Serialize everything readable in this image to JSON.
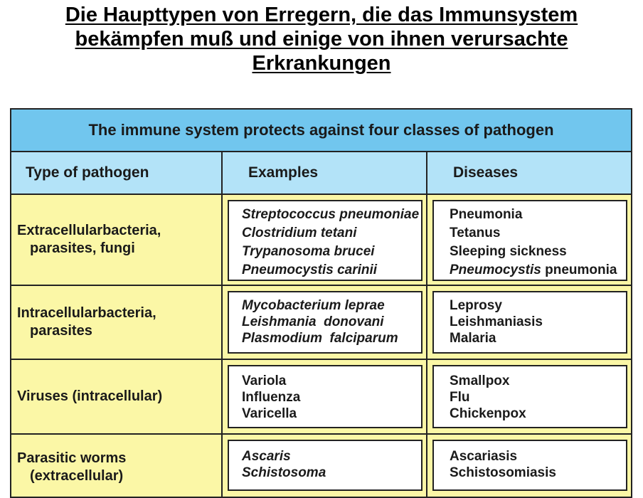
{
  "page_title": {
    "line1": "Die Haupttypen von Erregern, die das Immunsystem",
    "line2": "bekämpfen muß und einige von ihnen verursachte",
    "line3": "Erkrankungen"
  },
  "table": {
    "header": "The immune system protects against four classes of pathogen",
    "columns": {
      "type": "Type of pathogen",
      "examples": "Examples",
      "diseases": "Diseases"
    },
    "rows": [
      {
        "type_line1": "Extracellularbacteria,",
        "type_line2": "parasites, fungi",
        "examples": [
          "Streptococcus pneumoniae",
          "Clostridium tetani",
          "Trypanosoma brucei",
          "Pneumocystis carinii"
        ],
        "diseases": [
          "Pneumonia",
          "Tetanus",
          "Sleeping sickness"
        ],
        "disease_special_italic": "Pneumocystis",
        "disease_special_rest": " pneumonia"
      },
      {
        "type_line1": "Intracellularbacteria,",
        "type_line2": "parasites",
        "examples": [
          "Mycobacterium leprae",
          "Leishmania  donovani",
          "Plasmodium  falciparum"
        ],
        "diseases": [
          "Leprosy",
          "Leishmaniasis",
          "Malaria"
        ]
      },
      {
        "type_line1": "Viruses (intracellular)",
        "examples": [
          "Variola",
          "Influenza",
          "Varicella"
        ],
        "diseases": [
          "Smallpox",
          "Flu",
          "Chickenpox"
        ]
      },
      {
        "type_line1": "Parasitic worms",
        "type_line2": "(extracellular)",
        "examples": [
          "Ascaris",
          "Schistosoma"
        ],
        "diseases": [
          "Ascariasis",
          "Schistosomiasis"
        ]
      }
    ]
  },
  "colors": {
    "header_blue": "#71c6ee",
    "column_header_blue": "#b3e3f8",
    "row_yellow": "#fbf7a6"
  }
}
